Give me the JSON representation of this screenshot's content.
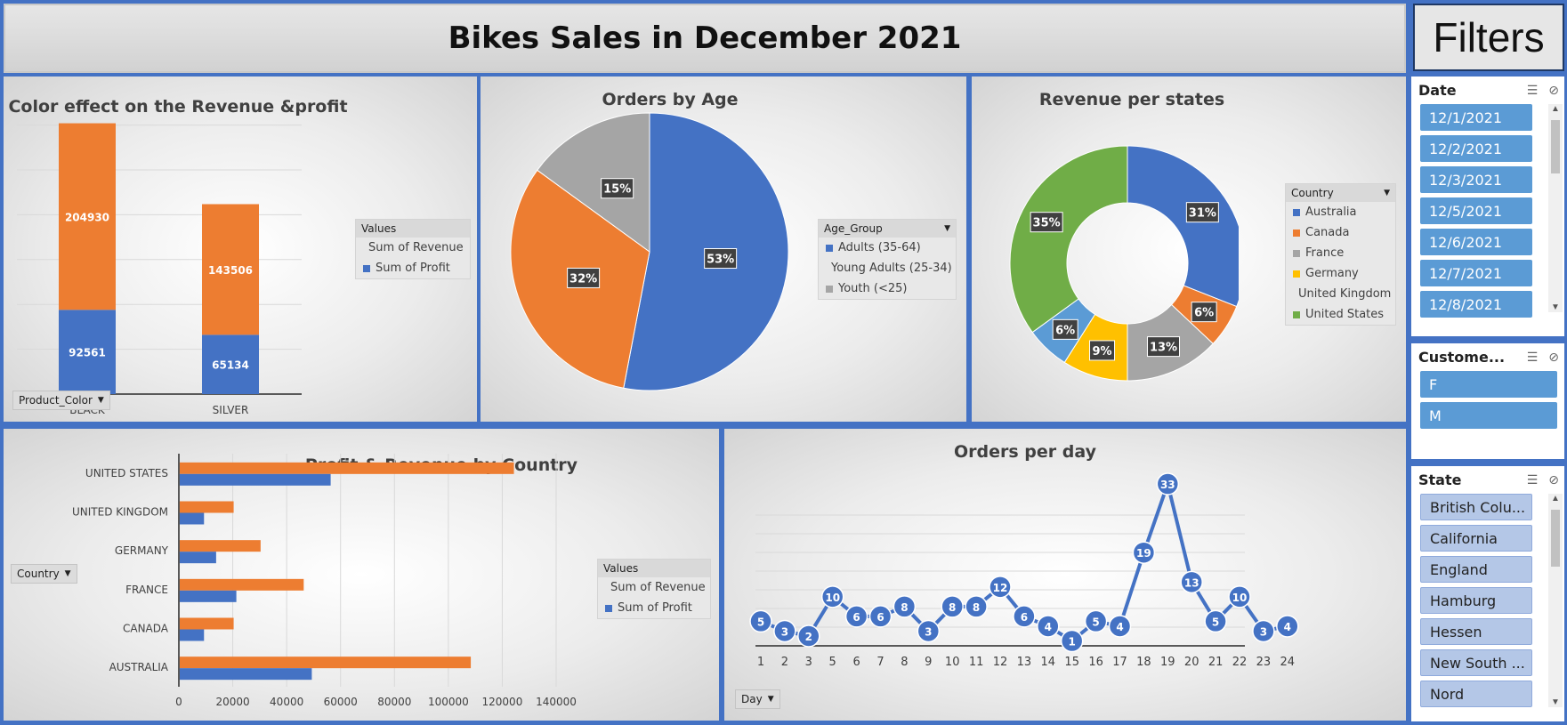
{
  "header": {
    "title": "Bikes Sales in December 2021"
  },
  "colors": {
    "blue": "#4472c4",
    "orange": "#ed7d31",
    "gray": "#a5a5a5",
    "yellow": "#ffc000",
    "lightblue": "#5b9bd5",
    "green": "#70ad47"
  },
  "filters": {
    "title": "Filters",
    "date": {
      "label": "Date",
      "items": [
        "12/1/2021",
        "12/2/2021",
        "12/3/2021",
        "12/5/2021",
        "12/6/2021",
        "12/7/2021",
        "12/8/2021"
      ]
    },
    "customer": {
      "label": "Custome...",
      "items": [
        "F",
        "M"
      ]
    },
    "state": {
      "label": "State",
      "items": [
        "British Colu...",
        "California",
        "England",
        "Hamburg",
        "Hessen",
        "New South ...",
        "Nord"
      ]
    }
  },
  "chart_data": [
    {
      "type": "bar",
      "title": "Color effect on the Revenue &profit",
      "stacked": true,
      "categories": [
        "BLACK",
        "SILVER"
      ],
      "series": [
        {
          "name": "Sum of  Profit",
          "values": [
            92561,
            65134
          ],
          "color": "#4472c4"
        },
        {
          "name": "Sum of Revenue",
          "values": [
            204930,
            143506
          ],
          "color": "#ed7d31"
        }
      ],
      "legend_title": "Values",
      "legend_order": [
        "Sum of Revenue",
        "Sum of  Profit"
      ],
      "field_button": "Product_Color"
    },
    {
      "type": "pie",
      "title": "Orders by Age",
      "labels": [
        "Adults (35-64)",
        "Young Adults (25-34)",
        "Youth (<25)"
      ],
      "values": [
        53,
        32,
        15
      ],
      "value_labels": [
        "53%",
        "32%",
        "15%"
      ],
      "colors": [
        "#4472c4",
        "#ed7d31",
        "#a5a5a5"
      ],
      "legend_title": "Age_Group"
    },
    {
      "type": "pie",
      "donut": true,
      "title": "Revenue per states",
      "labels": [
        "Australia",
        "Canada",
        "France",
        "Germany",
        "United Kingdom",
        "United States"
      ],
      "values": [
        31,
        6,
        13,
        9,
        6,
        35
      ],
      "value_labels": [
        "31%",
        "6%",
        "13%",
        "9%",
        "6%",
        "35%"
      ],
      "colors": [
        "#4472c4",
        "#ed7d31",
        "#a5a5a5",
        "#ffc000",
        "#5b9bd5",
        "#70ad47"
      ],
      "legend_title": "Country"
    },
    {
      "type": "bar",
      "orientation": "horizontal",
      "title": "Profit & Revenue by Country",
      "categories": [
        "AUSTRALIA",
        "CANADA",
        "FRANCE",
        "GERMANY",
        "UNITED KINGDOM",
        "UNITED STATES"
      ],
      "series": [
        {
          "name": "Sum of  Profit",
          "values": [
            49000,
            9000,
            21000,
            13500,
            9000,
            56000
          ],
          "color": "#4472c4"
        },
        {
          "name": "Sum of Revenue",
          "values": [
            108000,
            20000,
            46000,
            30000,
            20000,
            124000
          ],
          "color": "#ed7d31"
        }
      ],
      "xlim": [
        0,
        140000
      ],
      "xticks": [
        "0",
        "20000",
        "40000",
        "60000",
        "80000",
        "100000",
        "120000",
        "140000"
      ],
      "legend_title": "Values",
      "legend_order": [
        "Sum of Revenue",
        "Sum of  Profit"
      ],
      "field_button": "Country"
    },
    {
      "type": "line",
      "title": "Orders per day",
      "x": [
        "1",
        "2",
        "3",
        "5",
        "6",
        "7",
        "8",
        "9",
        "10",
        "11",
        "12",
        "13",
        "14",
        "15",
        "16",
        "17",
        "18",
        "19",
        "20",
        "21",
        "22",
        "23",
        "24"
      ],
      "y": [
        5,
        3,
        2,
        10,
        6,
        6,
        8,
        3,
        8,
        8,
        12,
        6,
        4,
        1,
        5,
        4,
        19,
        33,
        13,
        5,
        10,
        3,
        4
      ],
      "color": "#4472c4",
      "ylim": [
        0,
        35
      ],
      "field_button": "Day"
    }
  ]
}
